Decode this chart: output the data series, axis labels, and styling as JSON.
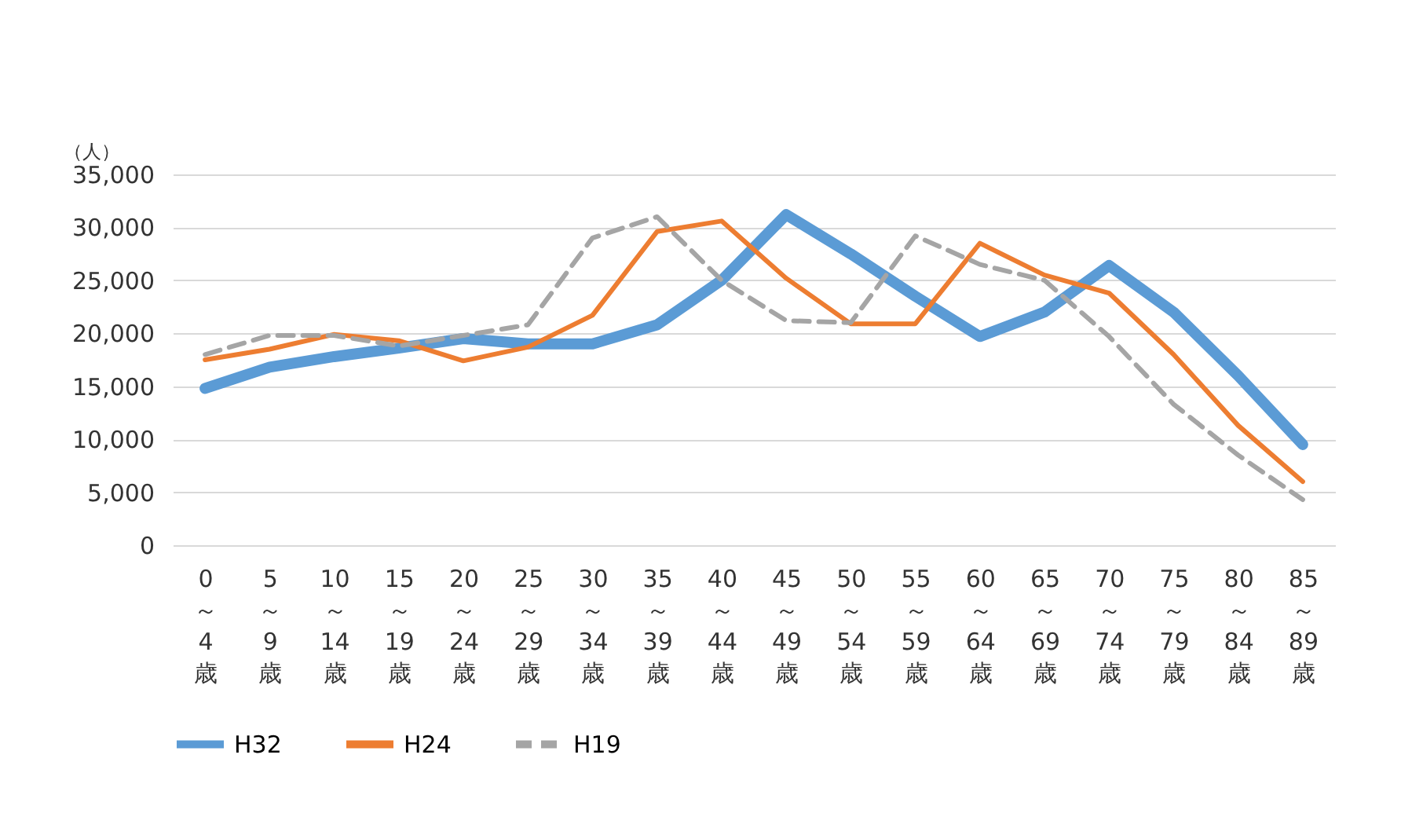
{
  "chart_data": {
    "type": "line",
    "ylabel": "（人）",
    "categories": [
      "0\n～\n4\n歳",
      "5\n～\n9\n歳",
      "10\n～\n14\n歳",
      "15\n～\n19\n歳",
      "20\n～\n24\n歳",
      "25\n～\n29\n歳",
      "30\n～\n34\n歳",
      "35\n～\n39\n歳",
      "40\n～\n44\n歳",
      "45\n～\n49\n歳",
      "50\n～\n54\n歳",
      "55\n～\n59\n歳",
      "60\n～\n64\n歳",
      "65\n～\n69\n歳",
      "70\n～\n74\n歳",
      "75\n～\n79\n歳",
      "80\n～\n84\n歳",
      "85\n～\n89\n歳"
    ],
    "series": [
      {
        "name": "H32",
        "color": "#5b9bd5",
        "line_style": "solid",
        "values": [
          14800,
          16800,
          17800,
          18600,
          19500,
          19000,
          19000,
          20800,
          25000,
          31200,
          27500,
          23500,
          19700,
          22000,
          26400,
          22000,
          16000,
          9500
        ]
      },
      {
        "name": "H24",
        "color": "#ed7d31",
        "line_style": "solid",
        "values": [
          17500,
          18500,
          19900,
          19300,
          17400,
          18700,
          21700,
          29600,
          30600,
          25200,
          20900,
          20900,
          28500,
          25500,
          23800,
          18000,
          11300,
          6000
        ]
      },
      {
        "name": "H19",
        "color": "#a5a5a5",
        "line_style": "dashed",
        "values": [
          18000,
          19800,
          19800,
          18800,
          19800,
          20800,
          29000,
          31000,
          25000,
          21200,
          21000,
          29200,
          26500,
          25000,
          19700,
          13300,
          8500,
          4300
        ]
      }
    ],
    "ylim": [
      0,
      35000
    ],
    "yticks": [
      0,
      {
        "value": 5000,
        "label": "5,000"
      },
      {
        "value": 10000,
        "label": "10,000"
      },
      {
        "value": 15000,
        "label": "15,000"
      },
      {
        "value": 20000,
        "label": "20,000"
      },
      {
        "value": 25000,
        "label": "25,000"
      },
      {
        "value": 30000,
        "label": "30,000"
      },
      {
        "value": 35000,
        "label": "35,000"
      }
    ],
    "grid": "y",
    "legend": "bottom",
    "marker": "none"
  }
}
